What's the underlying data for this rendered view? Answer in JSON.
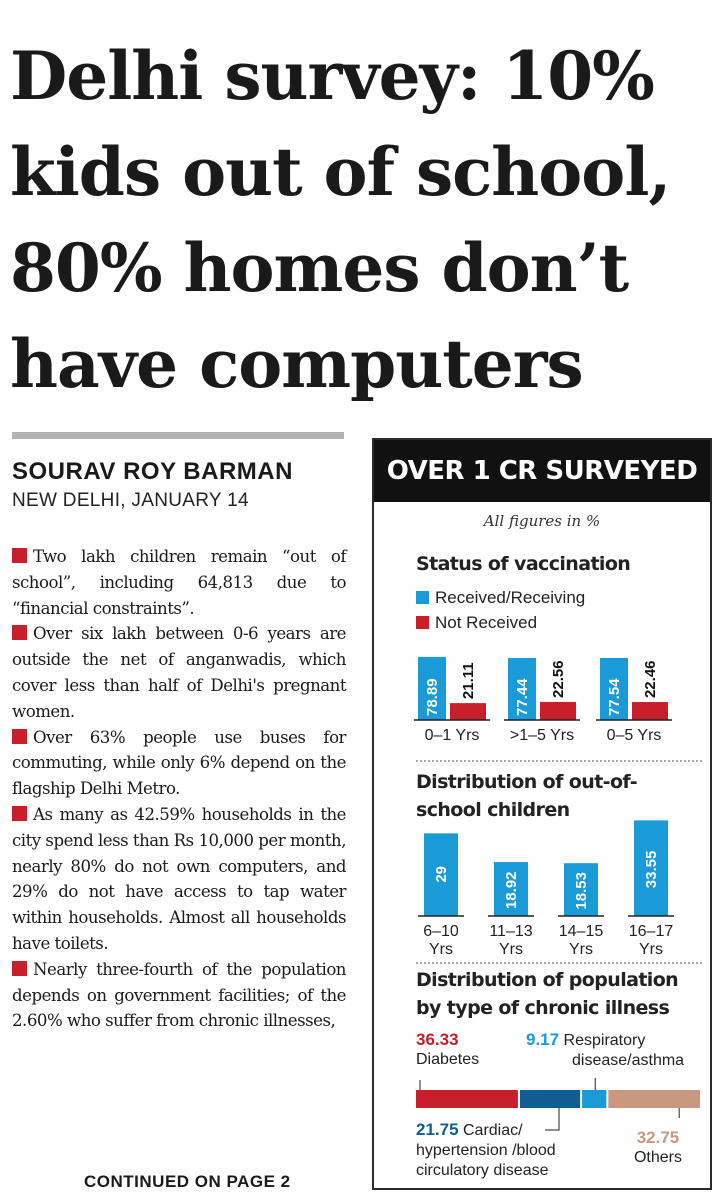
{
  "headline": {
    "lines": [
      "Delhi survey: 10%",
      "kids out of school,",
      "80% homes don’t",
      "have computers"
    ]
  },
  "byline": "SOURAV ROY BARMAN",
  "dateline": "NEW DELHI, JANUARY 14",
  "bullets": [
    "Two lakh children remain “out of school”, including 64,813 due to “financial constraints”.",
    "Over six lakh between 0-6 years are outside the net of anganwadis, which cover less than half of Delhi's pregnant women.",
    "Over 63% people use buses for commuting, while only 6% depend on the flagship Delhi Metro.",
    "As many as 42.59% households in the city spend less than Rs 10,000 per month, nearly 80% do not own computers, and 29% do not have access to tap water within households. Almost all households have toilets.",
    "Nearly three-fourth of the population depends on government facilities; of the 2.60% who suffer from chronic illnesses,"
  ],
  "continued": "CONTINUED ON PAGE 2",
  "box": {
    "title": "OVER 1 CR SURVEYED",
    "note": "All figures in %"
  },
  "colors": {
    "blue": "#1a9ad6",
    "red": "#c7202b",
    "brown": "#c9987f",
    "navy": "#0f5d91"
  },
  "chart_data": [
    {
      "type": "bar",
      "title": "Status of vaccination",
      "categories": [
        "0–1 Yrs",
        ">1–5 Yrs",
        "0–5 Yrs"
      ],
      "series": [
        {
          "name": "Received/Receiving",
          "values": [
            78.89,
            77.44,
            77.54
          ]
        },
        {
          "name": "Not Received",
          "values": [
            21.11,
            22.56,
            22.46
          ]
        }
      ],
      "value_labels": {
        "Received/Receiving": [
          "78.89",
          "77.44",
          "77.54"
        ],
        "Not Received": [
          "21.11",
          "22.56",
          "22.46"
        ]
      },
      "legend_position": "top-left"
    },
    {
      "type": "bar",
      "title": "Distribution of out-of-school children",
      "title_lines": [
        "Distribution of out-of-",
        "school children"
      ],
      "categories": [
        [
          "6–10",
          "Yrs"
        ],
        [
          "11–13",
          "Yrs"
        ],
        [
          "14–15",
          "Yrs"
        ],
        [
          "16–17",
          "Yrs"
        ]
      ],
      "values": [
        29,
        18.92,
        18.53,
        33.55
      ],
      "value_labels": [
        "29",
        "18.92",
        "18.53",
        "33.55"
      ]
    },
    {
      "type": "bar",
      "stacked": true,
      "title": "Distribution of population by type of chronic illness",
      "title_lines": [
        "Distribution of population",
        "by type of chronic illness"
      ],
      "segments": [
        {
          "name": "Diabetes",
          "value": 36.33,
          "value_label": "36.33",
          "label_lines": [
            "Diabetes"
          ]
        },
        {
          "name": "Cardiac/ hypertension /blood circulatory disease",
          "value": 21.75,
          "value_label": "21.75",
          "label_lines": [
            "Cardiac/",
            "hypertension /blood",
            "circulatory disease"
          ]
        },
        {
          "name": "Respiratory disease/asthma",
          "value": 9.17,
          "value_label": "9.17",
          "label_lines": [
            "Respiratory",
            "disease/asthma"
          ]
        },
        {
          "name": "Others",
          "value": 32.75,
          "value_label": "32.75",
          "label_lines": [
            "Others"
          ]
        }
      ]
    }
  ]
}
